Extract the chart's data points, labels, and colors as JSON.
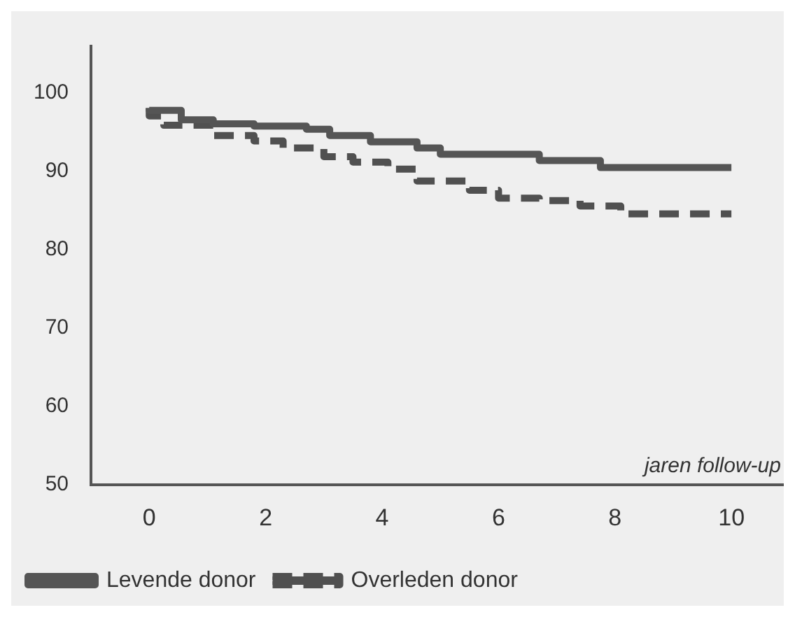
{
  "chart_data": {
    "type": "step",
    "xlabel": "jaren follow-up",
    "xlim": [
      -1,
      10.9
    ],
    "xticks": [
      0,
      2,
      4,
      6,
      8,
      10
    ],
    "ylim": [
      50,
      106
    ],
    "yticks": [
      50,
      60,
      70,
      80,
      90,
      100
    ],
    "grid": false,
    "legend": "bottom left",
    "marker": "none",
    "series": [
      {
        "name": "Levende donor",
        "color": "#555555",
        "line_style": "solid",
        "x": [
          0,
          0.55,
          1.1,
          1.8,
          2.7,
          3.1,
          3.8,
          4.6,
          5.0,
          6.7,
          7.75,
          8.3,
          10
        ],
        "values": [
          98.1,
          97.8,
          96.6,
          96.1,
          95.8,
          95.4,
          94.6,
          93.8,
          93.0,
          92.2,
          91.4,
          90.5,
          90.5
        ]
      },
      {
        "name": "Overleden donor",
        "color": "#505050",
        "line_style": "dashed",
        "x": [
          0,
          0.25,
          1.1,
          1.8,
          2.3,
          3.0,
          3.5,
          4.1,
          4.6,
          5.5,
          6.0,
          6.7,
          7.4,
          8.1,
          9.9,
          10
        ],
        "values": [
          98.1,
          97.1,
          95.9,
          94.6,
          93.9,
          93.0,
          91.9,
          91.2,
          90.3,
          88.8,
          87.6,
          86.6,
          86.3,
          85.6,
          84.6,
          84.6
        ]
      }
    ]
  }
}
